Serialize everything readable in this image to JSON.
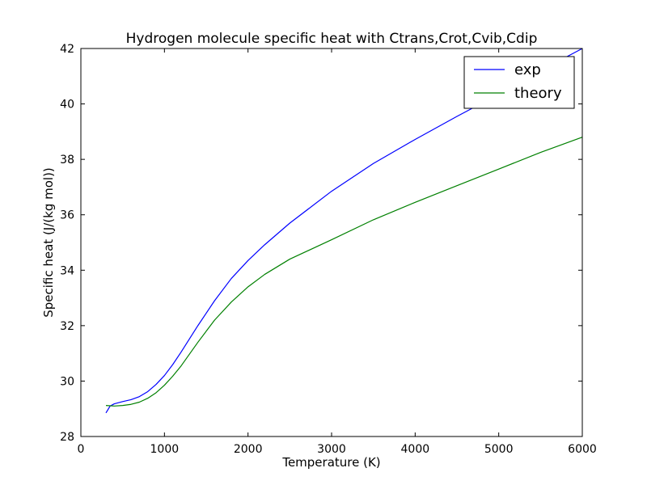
{
  "chart_data": {
    "type": "line",
    "title": "Hydrogen molecule specific heat with Ctrans,Crot,Cvib,Cdip",
    "xlabel": "Temperature (K)",
    "ylabel": "Specific heat (J/(kg mol))",
    "xlim": [
      0,
      6000
    ],
    "ylim": [
      28,
      42
    ],
    "xticks": [
      0,
      1000,
      2000,
      3000,
      4000,
      5000,
      6000
    ],
    "yticks": [
      28,
      30,
      32,
      34,
      36,
      38,
      40,
      42
    ],
    "grid": false,
    "legend_position": "top-right",
    "series": [
      {
        "name": "exp",
        "color": "#0000ff",
        "x": [
          300,
          350,
          400,
          500,
          600,
          700,
          800,
          900,
          1000,
          1100,
          1200,
          1400,
          1600,
          1800,
          2000,
          2200,
          2500,
          3000,
          3500,
          4000,
          4500,
          5000,
          5500,
          6000
        ],
        "y": [
          28.85,
          29.1,
          29.18,
          29.26,
          29.33,
          29.44,
          29.62,
          29.88,
          30.2,
          30.6,
          31.05,
          32.0,
          32.9,
          33.7,
          34.35,
          34.92,
          35.7,
          36.85,
          37.85,
          38.72,
          39.55,
          40.35,
          41.2,
          42.0
        ]
      },
      {
        "name": "theory",
        "color": "#008000",
        "x": [
          300,
          400,
          500,
          600,
          700,
          800,
          900,
          1000,
          1100,
          1200,
          1400,
          1600,
          1800,
          2000,
          2200,
          2500,
          3000,
          3500,
          4000,
          4500,
          5000,
          5500,
          6000
        ],
        "y": [
          29.12,
          29.1,
          29.12,
          29.16,
          29.24,
          29.38,
          29.58,
          29.85,
          30.18,
          30.55,
          31.4,
          32.2,
          32.85,
          33.4,
          33.85,
          34.4,
          35.1,
          35.82,
          36.45,
          37.05,
          37.65,
          38.25,
          38.8
        ]
      }
    ]
  }
}
